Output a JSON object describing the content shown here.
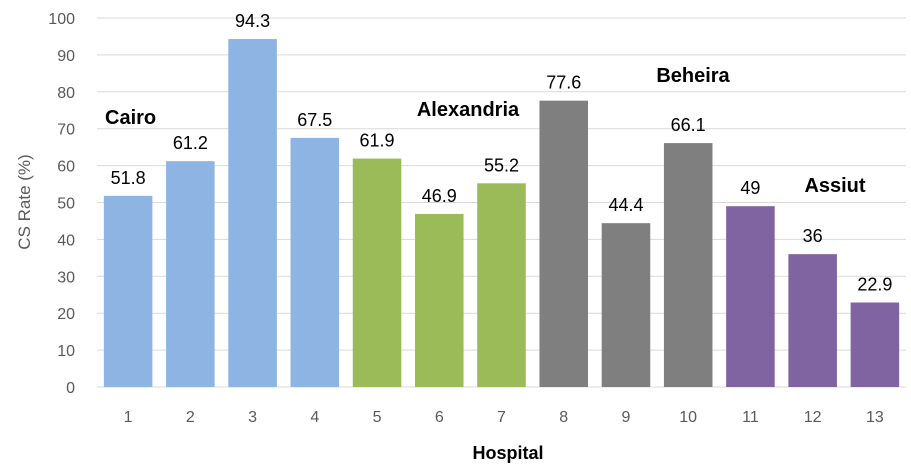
{
  "chart_data": {
    "type": "bar",
    "xlabel": "Hospital",
    "ylabel": "CS Rate (%)",
    "ylim": [
      0,
      100
    ],
    "ytick_step": 10,
    "grid": true,
    "categories": [
      "1",
      "2",
      "3",
      "4",
      "5",
      "6",
      "7",
      "8",
      "9",
      "10",
      "11",
      "12",
      "13"
    ],
    "values": [
      51.8,
      61.2,
      94.3,
      67.5,
      61.9,
      46.9,
      55.2,
      77.6,
      44.4,
      66.1,
      49,
      36,
      22.9
    ],
    "groups": [
      {
        "name": "Cairo",
        "color": "#8eb4e3",
        "start": 0,
        "end": 3
      },
      {
        "name": "Alexandria",
        "color": "#9bbb59",
        "start": 4,
        "end": 6
      },
      {
        "name": "Beheira",
        "color": "#7f7f7f",
        "start": 7,
        "end": 9
      },
      {
        "name": "Assiut",
        "color": "#8064a2",
        "start": 10,
        "end": 12
      }
    ]
  }
}
